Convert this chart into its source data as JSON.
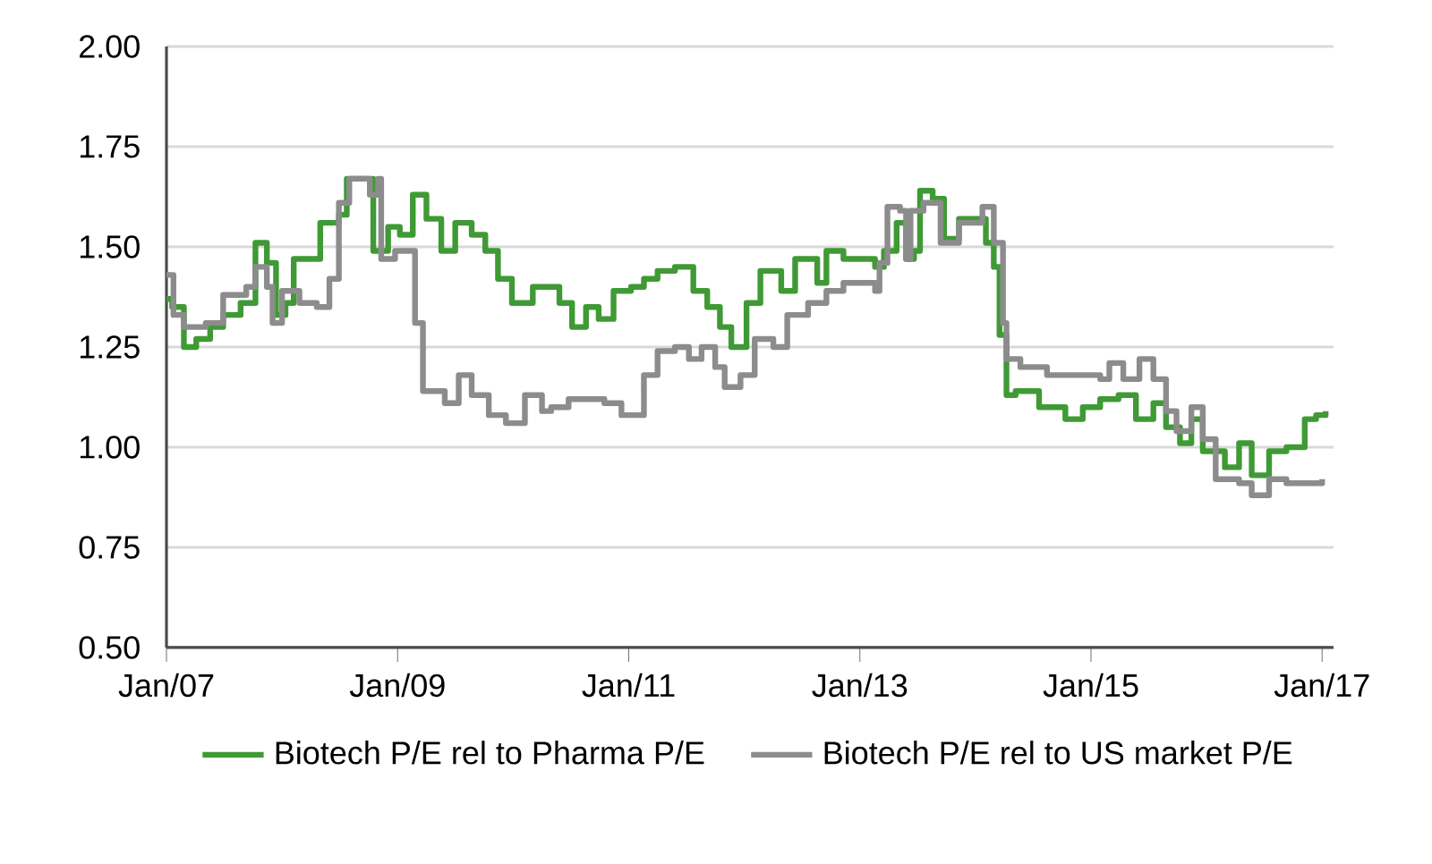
{
  "chart_data": {
    "type": "step",
    "xlim": [
      "2007-01-01",
      "2017-02-06"
    ],
    "ylim": [
      0.5,
      2.0
    ],
    "xticks": [
      {
        "value": "2007-01",
        "label": "Jan/07"
      },
      {
        "value": "2009-01",
        "label": "Jan/09"
      },
      {
        "value": "2011-01",
        "label": "Jan/11"
      },
      {
        "value": "2013-01",
        "label": "Jan/13"
      },
      {
        "value": "2015-01",
        "label": "Jan/15"
      },
      {
        "value": "2017-01",
        "label": "Jan/17"
      }
    ],
    "yticks": [
      {
        "value": 0.5,
        "label": "0.50"
      },
      {
        "value": 0.75,
        "label": "0.75"
      },
      {
        "value": 1.0,
        "label": "1.00"
      },
      {
        "value": 1.25,
        "label": "1.25"
      },
      {
        "value": 1.5,
        "label": "1.50"
      },
      {
        "value": 1.75,
        "label": "1.75"
      },
      {
        "value": 2.0,
        "label": "2.00"
      }
    ],
    "grid": "y",
    "legend": "bottom",
    "series": [
      {
        "name": "Biotech P/E rel to Pharma P/E",
        "color": "#3f9a35",
        "x": [
          "2007-01-01",
          "2007-01-19",
          "2007-02-25",
          "2007-04-05",
          "2007-05-19",
          "2007-06-29",
          "2007-08-23",
          "2007-10-09",
          "2007-11-14",
          "2007-12-13",
          "2008-01-12",
          "2008-02-07",
          "2008-04-05",
          "2008-05-01",
          "2008-06-29",
          "2008-07-24",
          "2008-09-21",
          "2008-10-16",
          "2008-12-02",
          "2009-01-08",
          "2009-02-18",
          "2009-04-02",
          "2009-05-19",
          "2009-07-02",
          "2009-08-23",
          "2009-10-05",
          "2009-11-14",
          "2009-12-28",
          "2010-03-04",
          "2010-05-27",
          "2010-07-06",
          "2010-08-19",
          "2010-09-28",
          "2010-11-14",
          "2011-01-08",
          "2011-02-18",
          "2011-04-02",
          "2011-05-27",
          "2011-07-24",
          "2011-09-06",
          "2011-10-16",
          "2011-11-21",
          "2012-01-08",
          "2012-02-21",
          "2012-04-27",
          "2012-06-10",
          "2012-08-19",
          "2012-09-17",
          "2012-11-10",
          "2013-01-04",
          "2013-02-18",
          "2013-03-18",
          "2013-04-27",
          "2013-05-27",
          "2013-06-21",
          "2013-07-10",
          "2013-08-19",
          "2013-09-24",
          "2013-11-10",
          "2014-01-04",
          "2014-02-03",
          "2014-02-28",
          "2014-03-18",
          "2014-04-09",
          "2014-05-08",
          "2014-07-21",
          "2014-10-12",
          "2014-12-06",
          "2015-01-30",
          "2015-03-29",
          "2015-05-23",
          "2015-07-17",
          "2015-08-26",
          "2015-10-09",
          "2015-11-14",
          "2015-12-20",
          "2016-02-28",
          "2016-04-13",
          "2016-05-23",
          "2016-07-17",
          "2016-09-10",
          "2016-11-07",
          "2016-12-13",
          "2017-01-12"
        ],
        "values": [
          1.37,
          1.35,
          1.25,
          1.27,
          1.3,
          1.33,
          1.36,
          1.51,
          1.46,
          1.33,
          1.36,
          1.47,
          1.47,
          1.56,
          1.58,
          1.67,
          1.67,
          1.49,
          1.55,
          1.53,
          1.63,
          1.57,
          1.49,
          1.56,
          1.53,
          1.49,
          1.42,
          1.36,
          1.4,
          1.36,
          1.3,
          1.35,
          1.32,
          1.39,
          1.4,
          1.42,
          1.44,
          1.45,
          1.39,
          1.35,
          1.3,
          1.25,
          1.36,
          1.44,
          1.39,
          1.47,
          1.41,
          1.49,
          1.47,
          1.47,
          1.45,
          1.49,
          1.56,
          1.47,
          1.49,
          1.64,
          1.62,
          1.52,
          1.57,
          1.57,
          1.51,
          1.45,
          1.28,
          1.13,
          1.14,
          1.1,
          1.07,
          1.1,
          1.12,
          1.13,
          1.07,
          1.11,
          1.05,
          1.01,
          1.07,
          0.99,
          0.95,
          1.01,
          0.93,
          0.99,
          1.0,
          1.07,
          1.08,
          1.09
        ]
      },
      {
        "name": "Biotech P/E rel to US market P/E",
        "color": "#8c8c8c",
        "x": [
          "2007-01-01",
          "2007-01-23",
          "2007-02-25",
          "2007-05-05",
          "2007-06-29",
          "2007-09-10",
          "2007-10-09",
          "2007-11-14",
          "2007-12-02",
          "2008-01-01",
          "2008-02-25",
          "2008-04-20",
          "2008-05-30",
          "2008-06-29",
          "2008-08-01",
          "2008-10-05",
          "2008-10-31",
          "2008-11-10",
          "2008-12-24",
          "2009-02-25",
          "2009-03-22",
          "2009-05-30",
          "2009-07-13",
          "2009-08-23",
          "2009-10-16",
          "2009-12-09",
          "2010-02-07",
          "2010-04-02",
          "2010-05-01",
          "2010-06-25",
          "2010-08-19",
          "2010-10-16",
          "2010-12-09",
          "2011-02-18",
          "2011-04-02",
          "2011-05-27",
          "2011-07-10",
          "2011-08-19",
          "2011-10-01",
          "2011-10-31",
          "2011-12-20",
          "2012-02-03",
          "2012-04-02",
          "2012-05-16",
          "2012-07-21",
          "2012-09-17",
          "2012-11-10",
          "2013-02-18",
          "2013-03-04",
          "2013-03-29",
          "2013-05-08",
          "2013-05-27",
          "2013-06-10",
          "2013-07-21",
          "2013-09-13",
          "2013-11-10",
          "2014-01-23",
          "2014-02-28",
          "2014-03-29",
          "2014-04-09",
          "2014-05-23",
          "2014-08-15",
          "2014-12-06",
          "2015-01-30",
          "2015-02-28",
          "2015-04-13",
          "2015-06-03",
          "2015-07-17",
          "2015-08-26",
          "2015-09-28",
          "2015-11-14",
          "2015-12-20",
          "2016-01-30",
          "2016-04-13",
          "2016-05-23",
          "2016-07-17",
          "2016-09-10",
          "2017-01-01"
        ],
        "values": [
          1.43,
          1.33,
          1.3,
          1.31,
          1.38,
          1.4,
          1.45,
          1.4,
          1.31,
          1.39,
          1.36,
          1.35,
          1.42,
          1.61,
          1.67,
          1.63,
          1.67,
          1.47,
          1.49,
          1.31,
          1.14,
          1.11,
          1.18,
          1.13,
          1.08,
          1.06,
          1.13,
          1.09,
          1.1,
          1.12,
          1.12,
          1.11,
          1.08,
          1.18,
          1.24,
          1.25,
          1.22,
          1.25,
          1.2,
          1.15,
          1.18,
          1.27,
          1.25,
          1.33,
          1.36,
          1.39,
          1.41,
          1.39,
          1.46,
          1.6,
          1.59,
          1.47,
          1.59,
          1.61,
          1.51,
          1.56,
          1.6,
          1.51,
          1.31,
          1.22,
          1.2,
          1.18,
          1.18,
          1.17,
          1.21,
          1.17,
          1.22,
          1.17,
          1.09,
          1.04,
          1.1,
          1.02,
          0.92,
          0.91,
          0.88,
          0.92,
          0.91,
          0.92
        ]
      }
    ]
  }
}
